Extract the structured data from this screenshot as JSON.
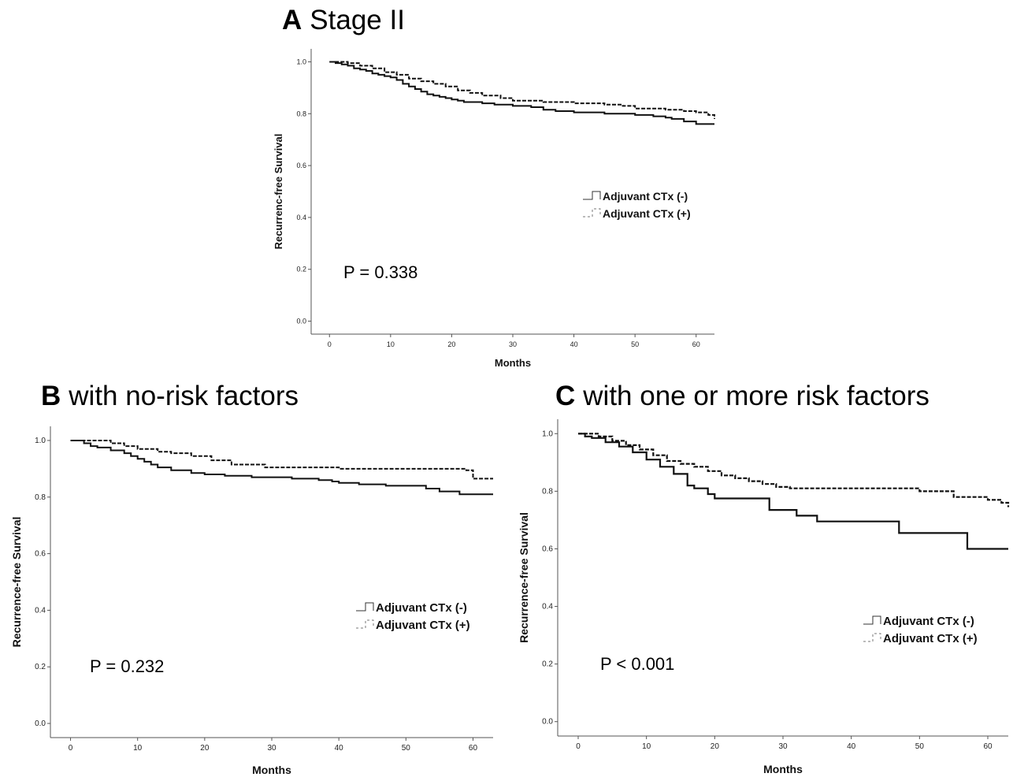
{
  "panels": [
    {
      "letter": "A",
      "title": "Stage II"
    },
    {
      "letter": "B",
      "title": "with no-risk factors"
    },
    {
      "letter": "C",
      "title": "with one or more risk factors"
    }
  ],
  "chart_data": [
    {
      "type": "line",
      "subtype": "kaplan-meier step",
      "panel": "A",
      "title": "Stage II",
      "xlabel": "Months",
      "ylabel": "Recurrenc-free Survival",
      "xlim": [
        -3,
        63
      ],
      "ylim": [
        -0.05,
        1.05
      ],
      "xticks": [
        0,
        10,
        20,
        30,
        40,
        50,
        60
      ],
      "yticks": [
        0.0,
        0.2,
        0.4,
        0.6,
        0.8,
        1.0
      ],
      "ytick_labels": [
        "0.0",
        "0.2",
        "0.4",
        "0.6",
        "0.8",
        "1.0"
      ],
      "annotation": "P = 0.338",
      "legend_position": "right",
      "series": [
        {
          "name": "Adjuvant CTx (-)",
          "style": "solid",
          "x": [
            0,
            1,
            2,
            3,
            4,
            5,
            6,
            7,
            8,
            9,
            10,
            11,
            12,
            13,
            14,
            15,
            16,
            17,
            18,
            19,
            20,
            21,
            22,
            25,
            27,
            30,
            33,
            35,
            37,
            40,
            45,
            50,
            53,
            55,
            56,
            58,
            60,
            63
          ],
          "y": [
            1.0,
            0.995,
            0.99,
            0.985,
            0.975,
            0.97,
            0.965,
            0.955,
            0.95,
            0.945,
            0.94,
            0.93,
            0.915,
            0.905,
            0.895,
            0.885,
            0.875,
            0.87,
            0.865,
            0.86,
            0.855,
            0.85,
            0.845,
            0.84,
            0.835,
            0.83,
            0.825,
            0.815,
            0.81,
            0.805,
            0.8,
            0.795,
            0.79,
            0.785,
            0.78,
            0.77,
            0.76,
            0.76
          ]
        },
        {
          "name": "Adjuvant CTx (+)",
          "style": "dashed",
          "x": [
            0,
            3,
            5,
            7,
            9,
            11,
            13,
            15,
            17,
            19,
            21,
            23,
            25,
            28,
            30,
            35,
            40,
            45,
            48,
            50,
            55,
            58,
            60,
            62,
            63
          ],
          "y": [
            1.0,
            0.995,
            0.985,
            0.975,
            0.96,
            0.95,
            0.935,
            0.925,
            0.915,
            0.905,
            0.89,
            0.88,
            0.87,
            0.86,
            0.85,
            0.845,
            0.84,
            0.835,
            0.83,
            0.82,
            0.815,
            0.81,
            0.805,
            0.795,
            0.78
          ]
        }
      ]
    },
    {
      "type": "line",
      "subtype": "kaplan-meier step",
      "panel": "B",
      "title": "with no-risk factors",
      "xlabel": "Months",
      "ylabel": "Recurrence-free Survival",
      "xlim": [
        -3,
        63
      ],
      "ylim": [
        -0.05,
        1.05
      ],
      "xticks": [
        0,
        10,
        20,
        30,
        40,
        50,
        60
      ],
      "yticks": [
        0.0,
        0.2,
        0.4,
        0.6,
        0.8,
        1.0
      ],
      "ytick_labels": [
        "0.0",
        "0.2",
        "0.4",
        "0.6",
        "0.8",
        "1.0"
      ],
      "annotation": "P = 0.232",
      "legend_position": "right",
      "series": [
        {
          "name": "Adjuvant CTx (-)",
          "style": "solid",
          "x": [
            0,
            2,
            3,
            4,
            6,
            8,
            9,
            10,
            11,
            12,
            13,
            15,
            18,
            20,
            23,
            27,
            33,
            37,
            39,
            40,
            43,
            47,
            53,
            55,
            58,
            63
          ],
          "y": [
            1.0,
            0.99,
            0.98,
            0.975,
            0.965,
            0.955,
            0.945,
            0.935,
            0.925,
            0.915,
            0.905,
            0.895,
            0.885,
            0.88,
            0.875,
            0.87,
            0.865,
            0.86,
            0.855,
            0.85,
            0.845,
            0.84,
            0.83,
            0.82,
            0.81,
            0.81
          ]
        },
        {
          "name": "Adjuvant CTx (+)",
          "style": "dashed",
          "x": [
            0,
            3,
            6,
            8,
            10,
            13,
            15,
            18,
            21,
            24,
            29,
            40,
            50,
            55,
            59,
            60,
            63
          ],
          "y": [
            1.0,
            1.0,
            0.99,
            0.98,
            0.97,
            0.96,
            0.955,
            0.945,
            0.93,
            0.915,
            0.905,
            0.9,
            0.9,
            0.9,
            0.895,
            0.865,
            0.865
          ]
        }
      ]
    },
    {
      "type": "line",
      "subtype": "kaplan-meier step",
      "panel": "C",
      "title": "with one or more risk factors",
      "xlabel": "Months",
      "ylabel": "Recurrence-free Survival",
      "xlim": [
        -3,
        63
      ],
      "ylim": [
        -0.05,
        1.05
      ],
      "xticks": [
        0,
        10,
        20,
        30,
        40,
        50,
        60
      ],
      "yticks": [
        0.0,
        0.2,
        0.4,
        0.6,
        0.8,
        1.0
      ],
      "ytick_labels": [
        "0.0",
        "0.2",
        "0.4",
        "0.6",
        "0.8",
        "1.0"
      ],
      "annotation": "P < 0.001",
      "legend_position": "right",
      "series": [
        {
          "name": "Adjuvant CTx (-)",
          "style": "solid",
          "x": [
            0,
            1,
            2,
            4,
            6,
            8,
            10,
            12,
            14,
            16,
            17,
            19,
            20,
            28,
            32,
            35,
            47,
            57,
            63
          ],
          "y": [
            1.0,
            0.99,
            0.985,
            0.97,
            0.955,
            0.935,
            0.91,
            0.885,
            0.86,
            0.82,
            0.81,
            0.79,
            0.775,
            0.735,
            0.715,
            0.695,
            0.655,
            0.6,
            0.6
          ]
        },
        {
          "name": "Adjuvant CTx (+)",
          "style": "dashed",
          "x": [
            0,
            3,
            5,
            7,
            9,
            11,
            13,
            15,
            17,
            19,
            21,
            23,
            25,
            27,
            29,
            31,
            35,
            40,
            45,
            50,
            55,
            60,
            62,
            63
          ],
          "y": [
            1.0,
            0.99,
            0.975,
            0.96,
            0.945,
            0.925,
            0.905,
            0.895,
            0.885,
            0.87,
            0.855,
            0.845,
            0.835,
            0.825,
            0.815,
            0.81,
            0.81,
            0.81,
            0.81,
            0.8,
            0.78,
            0.77,
            0.76,
            0.745
          ]
        }
      ]
    }
  ]
}
